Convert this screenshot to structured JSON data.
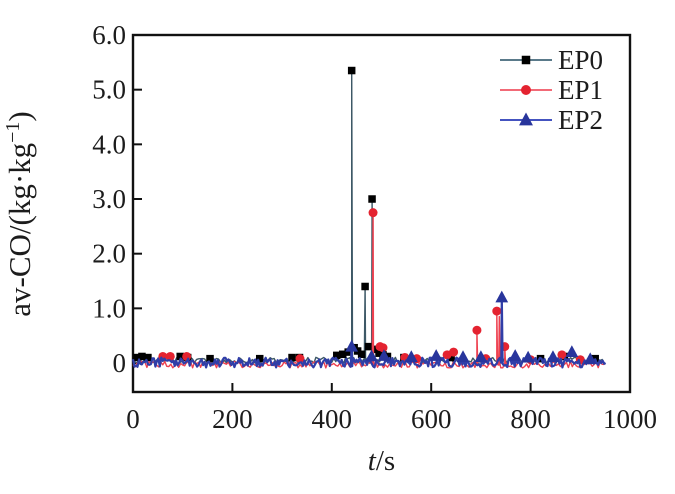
{
  "chart_data": {
    "type": "line",
    "title": "",
    "xlabel": "t/s",
    "xlabel_italic": "t",
    "xlabel_rest": "/s",
    "ylabel": "av-CO/(kg·kg⁻¹)",
    "ylabel_main": "av-CO/(kg·kg",
    "ylabel_sup": "−1",
    "ylabel_end": ")",
    "xlim": [
      0,
      1000
    ],
    "ylim": [
      -0.53,
      6.0
    ],
    "grid": false,
    "legend_position": "top-right",
    "xticks": [
      {
        "v": 0,
        "label": "0",
        "tick": false
      },
      {
        "v": 200,
        "label": "200",
        "tick": true
      },
      {
        "v": 400,
        "label": "400",
        "tick": true
      },
      {
        "v": 600,
        "label": "600",
        "tick": true
      },
      {
        "v": 800,
        "label": "800",
        "tick": true
      },
      {
        "v": 1000,
        "label": "1000",
        "tick": false
      }
    ],
    "yticks": [
      {
        "v": 0,
        "label": "0",
        "tick": true
      },
      {
        "v": 1,
        "label": "1.0",
        "tick": true
      },
      {
        "v": 2,
        "label": "2.0",
        "tick": true
      },
      {
        "v": 3,
        "label": "3.0",
        "tick": true
      },
      {
        "v": 4,
        "label": "4.0",
        "tick": true
      },
      {
        "v": 5,
        "label": "5.0",
        "tick": true
      },
      {
        "v": 6,
        "label": "6.0",
        "tick": false
      }
    ],
    "series": [
      {
        "name": "EP0",
        "marker": "square",
        "marker_size": 7.5,
        "color": "#000000",
        "line_color": "#3d5866",
        "legend_line_color": "#5a7a8a",
        "line_width": 1.4,
        "baseline": {
          "start": 0,
          "end": 950,
          "step": 4,
          "center": 0.05,
          "amp": 0.055,
          "seed": 11
        },
        "spikes": [
          [
            440,
            5.35
          ],
          [
            467,
            1.4
          ],
          [
            481,
            3.0
          ]
        ],
        "markers": [
          [
            8,
            0.1
          ],
          [
            18,
            0.12
          ],
          [
            30,
            0.1
          ],
          [
            95,
            0.12
          ],
          [
            110,
            0.1
          ],
          [
            155,
            0.08
          ],
          [
            255,
            0.08
          ],
          [
            320,
            0.1
          ],
          [
            335,
            0.1
          ],
          [
            410,
            0.14
          ],
          [
            422,
            0.16
          ],
          [
            433,
            0.2
          ],
          [
            440,
            5.35
          ],
          [
            445,
            0.28
          ],
          [
            452,
            0.22
          ],
          [
            460,
            0.16
          ],
          [
            467,
            1.4
          ],
          [
            474,
            0.3
          ],
          [
            481,
            3.0
          ],
          [
            488,
            0.25
          ],
          [
            495,
            0.18
          ],
          [
            503,
            0.15
          ],
          [
            512,
            0.12
          ],
          [
            545,
            0.1
          ],
          [
            640,
            0.1
          ],
          [
            700,
            0.08
          ],
          [
            820,
            0.08
          ],
          [
            868,
            0.12
          ],
          [
            930,
            0.08
          ]
        ]
      },
      {
        "name": "EP1",
        "marker": "circle",
        "marker_size": 9,
        "color": "#e42330",
        "line_color": "#ee4150",
        "legend_line_color": "#f26a77",
        "line_width": 1.4,
        "baseline": {
          "start": 0,
          "end": 950,
          "step": 4,
          "center": -0.03,
          "amp": 0.06,
          "seed": 23
        },
        "spikes": [
          [
            483,
            2.75
          ],
          [
            692,
            0.6
          ],
          [
            732,
            0.95
          ],
          [
            737,
            0.85
          ],
          [
            748,
            0.3
          ]
        ],
        "markers": [
          [
            60,
            0.12
          ],
          [
            75,
            0.12
          ],
          [
            108,
            0.12
          ],
          [
            336,
            0.08
          ],
          [
            483,
            2.75
          ],
          [
            497,
            0.3
          ],
          [
            503,
            0.28
          ],
          [
            547,
            0.1
          ],
          [
            571,
            0.08
          ],
          [
            632,
            0.15
          ],
          [
            645,
            0.2
          ],
          [
            692,
            0.6
          ],
          [
            710,
            0.08
          ],
          [
            732,
            0.95
          ],
          [
            748,
            0.3
          ],
          [
            800,
            0.06
          ],
          [
            863,
            0.15
          ],
          [
            900,
            0.06
          ]
        ]
      },
      {
        "name": "EP2",
        "marker": "triangle",
        "marker_size": 11,
        "color": "#28359c",
        "line_color": "#303ea8",
        "legend_line_color": "#4453c0",
        "line_width": 2.2,
        "baseline": {
          "start": 0,
          "end": 952,
          "step": 3,
          "center": 0.01,
          "amp": 0.09,
          "seed": 5
        },
        "spikes": [
          [
            440,
            0.3
          ],
          [
            742,
            1.2
          ]
        ],
        "markers": [
          [
            440,
            0.3
          ],
          [
            480,
            0.12
          ],
          [
            505,
            0.13
          ],
          [
            560,
            0.11
          ],
          [
            610,
            0.13
          ],
          [
            664,
            0.11
          ],
          [
            700,
            0.11
          ],
          [
            742,
            1.2
          ],
          [
            769,
            0.13
          ],
          [
            795,
            0.1
          ],
          [
            845,
            0.11
          ],
          [
            883,
            0.2
          ],
          [
            920,
            0.07
          ]
        ]
      }
    ]
  }
}
